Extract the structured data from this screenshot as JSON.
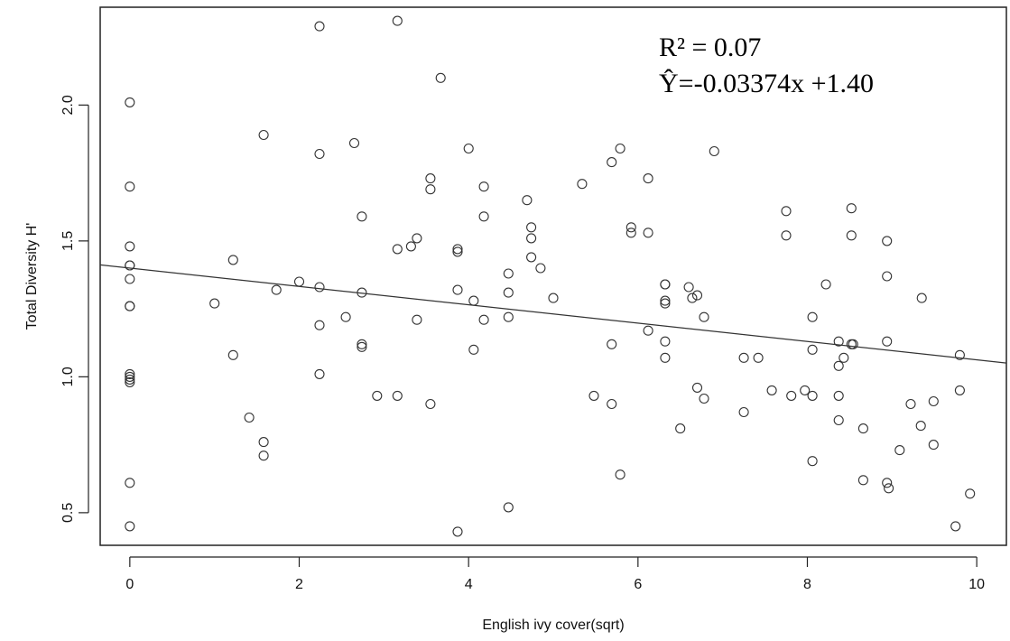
{
  "chart_data": {
    "type": "scatter",
    "title": "",
    "xlabel": "English ivy cover(sqrt)",
    "ylabel": "Total Diversity H'",
    "xlim": [
      -0.35,
      10.35
    ],
    "ylim": [
      0.38,
      2.36
    ],
    "xticks": [
      0,
      2,
      4,
      6,
      8,
      10
    ],
    "yticks": [
      0.5,
      1.0,
      1.5,
      2.0
    ],
    "ytick_labels": [
      "0.5",
      "1.0",
      "1.5",
      "2.0"
    ],
    "grid": false,
    "legend": "none",
    "annotations": {
      "r2": "R² = 0.07",
      "equation": "Ŷ=-0.03374x +1.40"
    },
    "regression": {
      "slope": -0.03374,
      "intercept": 1.4
    },
    "points": {
      "x": [
        0,
        0,
        0,
        0,
        0,
        0,
        0,
        0,
        0,
        0,
        0,
        0,
        0,
        0,
        1.0,
        1.22,
        1.22,
        1.41,
        1.58,
        1.58,
        1.58,
        1.73,
        2.0,
        2.24,
        2.24,
        2.24,
        2.24,
        2.24,
        2.55,
        2.65,
        2.74,
        2.74,
        2.74,
        2.74,
        2.92,
        3.16,
        3.16,
        3.16,
        3.32,
        3.39,
        3.39,
        3.55,
        3.55,
        3.55,
        3.67,
        3.87,
        3.87,
        3.87,
        3.87,
        4.0,
        4.06,
        4.06,
        4.18,
        4.18,
        4.18,
        4.47,
        4.47,
        4.47,
        4.47,
        4.69,
        4.74,
        4.74,
        4.74,
        4.85,
        5.0,
        5.34,
        5.48,
        5.69,
        5.69,
        5.69,
        5.79,
        5.79,
        5.92,
        5.92,
        6.12,
        6.12,
        6.12,
        6.32,
        6.32,
        6.32,
        6.32,
        6.32,
        6.32,
        6.5,
        6.6,
        6.64,
        6.7,
        6.7,
        6.78,
        6.78,
        6.9,
        7.25,
        7.25,
        7.42,
        7.58,
        7.75,
        7.75,
        7.81,
        7.97,
        8.06,
        8.06,
        8.06,
        8.06,
        8.22,
        8.37,
        8.37,
        8.37,
        8.37,
        8.43,
        8.52,
        8.52,
        8.52,
        8.54,
        8.66,
        8.66,
        8.94,
        8.94,
        8.94,
        8.94,
        8.96,
        9.09,
        9.22,
        9.34,
        9.35,
        9.49,
        9.49,
        9.75,
        9.8,
        9.8,
        9.92
      ],
      "y": [
        2.01,
        1.7,
        1.48,
        1.41,
        1.36,
        1.26,
        1.26,
        1.01,
        1.0,
        0.99,
        0.98,
        0.61,
        0.45,
        1.41,
        1.27,
        1.43,
        1.08,
        0.85,
        1.89,
        0.76,
        0.71,
        1.32,
        1.35,
        2.29,
        1.82,
        1.33,
        1.19,
        1.01,
        1.22,
        1.86,
        1.59,
        1.31,
        1.12,
        1.11,
        0.93,
        2.31,
        1.47,
        0.93,
        1.48,
        1.51,
        1.21,
        1.73,
        1.69,
        0.9,
        2.1,
        1.47,
        1.46,
        1.32,
        0.43,
        1.84,
        1.28,
        1.1,
        1.7,
        1.59,
        1.21,
        1.38,
        1.31,
        1.22,
        0.52,
        1.65,
        1.55,
        1.51,
        1.44,
        1.4,
        1.29,
        1.71,
        0.93,
        1.79,
        1.12,
        0.9,
        1.84,
        0.64,
        1.55,
        1.53,
        1.73,
        1.53,
        1.17,
        1.34,
        1.34,
        1.28,
        1.27,
        1.13,
        1.07,
        0.81,
        1.33,
        1.29,
        1.3,
        0.96,
        1.22,
        0.92,
        1.83,
        1.07,
        0.87,
        1.07,
        0.95,
        1.61,
        1.52,
        0.93,
        0.95,
        1.22,
        1.1,
        0.69,
        0.93,
        1.34,
        1.13,
        1.04,
        0.93,
        0.84,
        1.07,
        1.62,
        1.52,
        1.12,
        1.12,
        0.81,
        0.62,
        1.5,
        1.37,
        1.13,
        0.61,
        0.59,
        0.73,
        0.9,
        0.82,
        1.29,
        0.91,
        0.75,
        0.45,
        1.08,
        0.95,
        0.57
      ]
    }
  }
}
